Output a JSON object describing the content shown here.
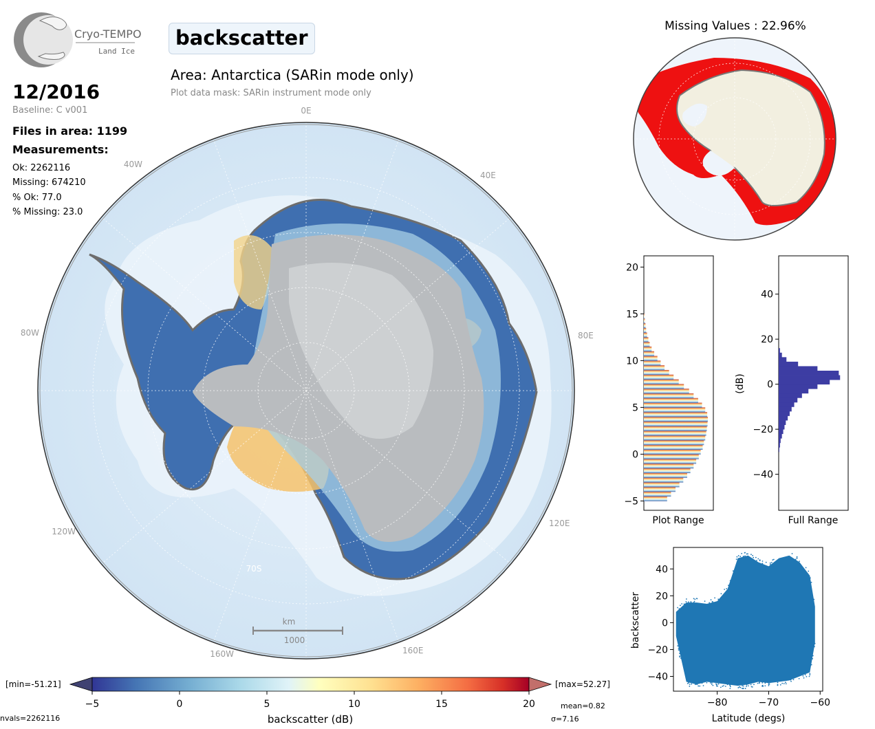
{
  "logo": {
    "name": "Cryo-TEMPO",
    "sub": "Land Ice"
  },
  "title": "backscatter",
  "area": "Area: Antarctica (SARin mode only)",
  "mask": "Plot data mask: SARin instrument mode only",
  "date": "12/2016",
  "baseline": "Baseline: C v001",
  "files": "Files in area: 1199",
  "measurements_label": "Measurements:",
  "stats": [
    "Ok: 2262116",
    "Missing: 674210",
    "% Ok: 77.0",
    "% Missing: 23.0"
  ],
  "map": {
    "lon_labels": [
      "0E",
      "40E",
      "80E",
      "120E",
      "160E",
      "160W",
      "120W",
      "80W",
      "40W"
    ],
    "lat_label": "70S",
    "scalebar_unit": "km",
    "scalebar_value": "1000"
  },
  "missing_title": "Missing Values : 22.96%",
  "colorbar": {
    "min_label": "[min=-51.21]",
    "max_label": "[max=52.27]",
    "ticks": [
      -5,
      0,
      5,
      10,
      15,
      20
    ],
    "label": "backscatter (dB)",
    "range": [
      -5,
      20
    ],
    "nvals": "nvals=2262116",
    "mean": "mean=0.82",
    "sigma": "σ=7.16"
  },
  "chart_data": [
    {
      "type": "bar",
      "orientation": "horizontal",
      "xlabel": "Plot Range",
      "yticks": [
        -5,
        0,
        5,
        10,
        15,
        20
      ],
      "ylim": [
        -6,
        21.2
      ],
      "bins_center": [
        -4.75,
        -4.25,
        -3.75,
        -3.25,
        -2.75,
        -2.25,
        -1.75,
        -1.25,
        -0.75,
        -0.25,
        0.25,
        0.75,
        1.25,
        1.75,
        2.25,
        2.75,
        3.25,
        3.75,
        4.25,
        4.75,
        5.25,
        5.75,
        6.25,
        6.75,
        7.25,
        7.75,
        8.25,
        8.75,
        9.25,
        9.75,
        10.25,
        10.75,
        11.25,
        11.75,
        12.25,
        12.75,
        13.25,
        13.75,
        14.25,
        14.75
      ],
      "values": [
        0.36,
        0.42,
        0.49,
        0.55,
        0.61,
        0.67,
        0.72,
        0.77,
        0.81,
        0.85,
        0.88,
        0.91,
        0.93,
        0.95,
        0.965,
        0.975,
        0.985,
        0.99,
        0.98,
        0.95,
        0.9,
        0.84,
        0.77,
        0.7,
        0.62,
        0.54,
        0.46,
        0.39,
        0.32,
        0.26,
        0.21,
        0.16,
        0.12,
        0.09,
        0.07,
        0.05,
        0.035,
        0.025,
        0.015,
        0.008
      ]
    },
    {
      "type": "bar",
      "orientation": "horizontal",
      "xlabel": "Full Range",
      "ylabel": "(dB)",
      "yticks": [
        -40,
        -20,
        0,
        20,
        40
      ],
      "ylim": [
        -56,
        57
      ],
      "bins_center": [
        -29,
        -27,
        -25,
        -23,
        -21,
        -19,
        -17,
        -15,
        -13,
        -11,
        -9,
        -7,
        -5,
        -3,
        -1,
        1,
        3,
        5,
        7,
        9,
        11,
        13,
        15
      ],
      "values": [
        0.01,
        0.02,
        0.03,
        0.05,
        0.07,
        0.09,
        0.11,
        0.14,
        0.17,
        0.2,
        0.24,
        0.29,
        0.36,
        0.46,
        0.6,
        0.79,
        0.95,
        0.93,
        0.6,
        0.3,
        0.12,
        0.05,
        0.02
      ]
    },
    {
      "type": "scatter",
      "xlabel": "Latitude (degs)",
      "ylabel": "backscatter",
      "xticks": [
        -80,
        -70,
        -60
      ],
      "yticks": [
        -40,
        -20,
        0,
        20,
        40
      ],
      "xlim": [
        -88.5,
        -59.5
      ],
      "ylim": [
        -51,
        56
      ],
      "envelope": {
        "lat": [
          -88,
          -86,
          -84,
          -82,
          -80,
          -78,
          -76,
          -74,
          -72,
          -70,
          -68,
          -66,
          -64,
          -62,
          -61
        ],
        "y_low": [
          -10,
          -44,
          -46,
          -44,
          -45,
          -46,
          -47,
          -46,
          -44,
          -45,
          -44,
          -43,
          -40,
          -37,
          -15
        ],
        "y_high": [
          8,
          15,
          15,
          14,
          16,
          25,
          48,
          50,
          45,
          42,
          48,
          50,
          45,
          35,
          12
        ]
      }
    }
  ]
}
